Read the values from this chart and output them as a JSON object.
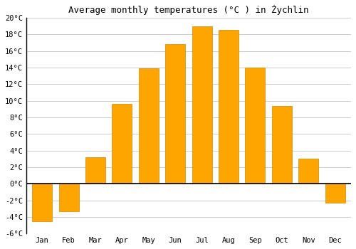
{
  "title": "Average monthly temperatures (°C ) in Żychlin",
  "months": [
    "Jan",
    "Feb",
    "Mar",
    "Apr",
    "May",
    "Jun",
    "Jul",
    "Aug",
    "Sep",
    "Oct",
    "Nov",
    "Dec"
  ],
  "temperatures": [
    -4.5,
    -3.3,
    3.2,
    9.6,
    13.9,
    16.8,
    19.0,
    18.5,
    14.0,
    9.4,
    3.0,
    -2.3
  ],
  "bar_color": "#FFA500",
  "bar_edge_color": "#CC8800",
  "ylim": [
    -6,
    20
  ],
  "yticks": [
    -6,
    -4,
    -2,
    0,
    2,
    4,
    6,
    8,
    10,
    12,
    14,
    16,
    18,
    20
  ],
  "ytick_labels": [
    "-6°C",
    "-4°C",
    "-2°C",
    "0°C",
    "2°C",
    "4°C",
    "6°C",
    "8°C",
    "10°C",
    "12°C",
    "14°C",
    "16°C",
    "18°C",
    "20°C"
  ],
  "background_color": "#ffffff",
  "grid_color": "#cccccc",
  "title_fontsize": 9,
  "tick_fontsize": 7.5,
  "bar_width": 0.75
}
